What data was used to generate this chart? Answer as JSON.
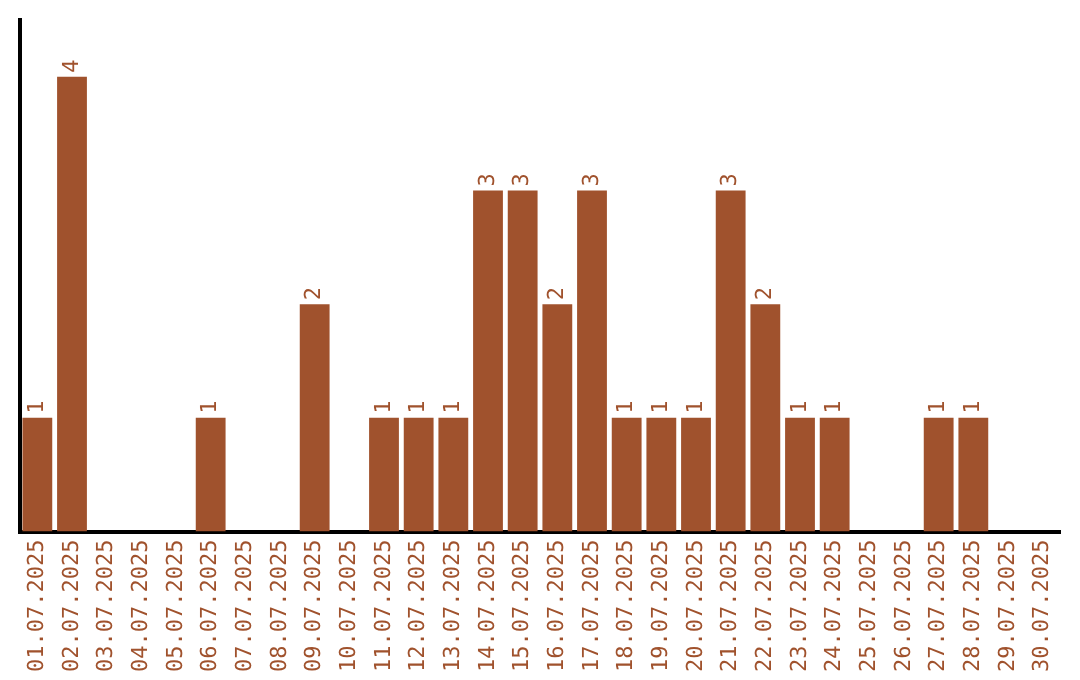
{
  "chart_data": {
    "type": "bar",
    "categories": [
      "01.07.2025",
      "02.07.2025",
      "03.07.2025",
      "04.07.2025",
      "05.07.2025",
      "06.07.2025",
      "07.07.2025",
      "08.07.2025",
      "09.07.2025",
      "10.07.2025",
      "11.07.2025",
      "12.07.2025",
      "13.07.2025",
      "14.07.2025",
      "15.07.2025",
      "16.07.2025",
      "17.07.2025",
      "18.07.2025",
      "19.07.2025",
      "20.07.2025",
      "21.07.2025",
      "22.07.2025",
      "23.07.2025",
      "24.07.2025",
      "25.07.2025",
      "26.07.2025",
      "27.07.2025",
      "28.07.2025",
      "29.07.2025",
      "30.07.2025"
    ],
    "values": [
      1,
      4,
      0,
      0,
      0,
      1,
      0,
      0,
      2,
      0,
      1,
      1,
      1,
      3,
      3,
      2,
      3,
      1,
      1,
      1,
      3,
      2,
      1,
      1,
      0,
      0,
      1,
      1,
      0,
      0
    ],
    "value_labels": [
      "1",
      "4",
      null,
      null,
      null,
      "1",
      null,
      null,
      "2",
      null,
      "1",
      "1",
      "1",
      "3",
      "3",
      "2",
      "3",
      "1",
      "1",
      "1",
      "3",
      "2",
      "1",
      "1",
      null,
      null,
      "1",
      "1",
      null,
      null
    ],
    "color": "#a0522d",
    "grid": false,
    "legend": false,
    "tick_labels": "x"
  }
}
